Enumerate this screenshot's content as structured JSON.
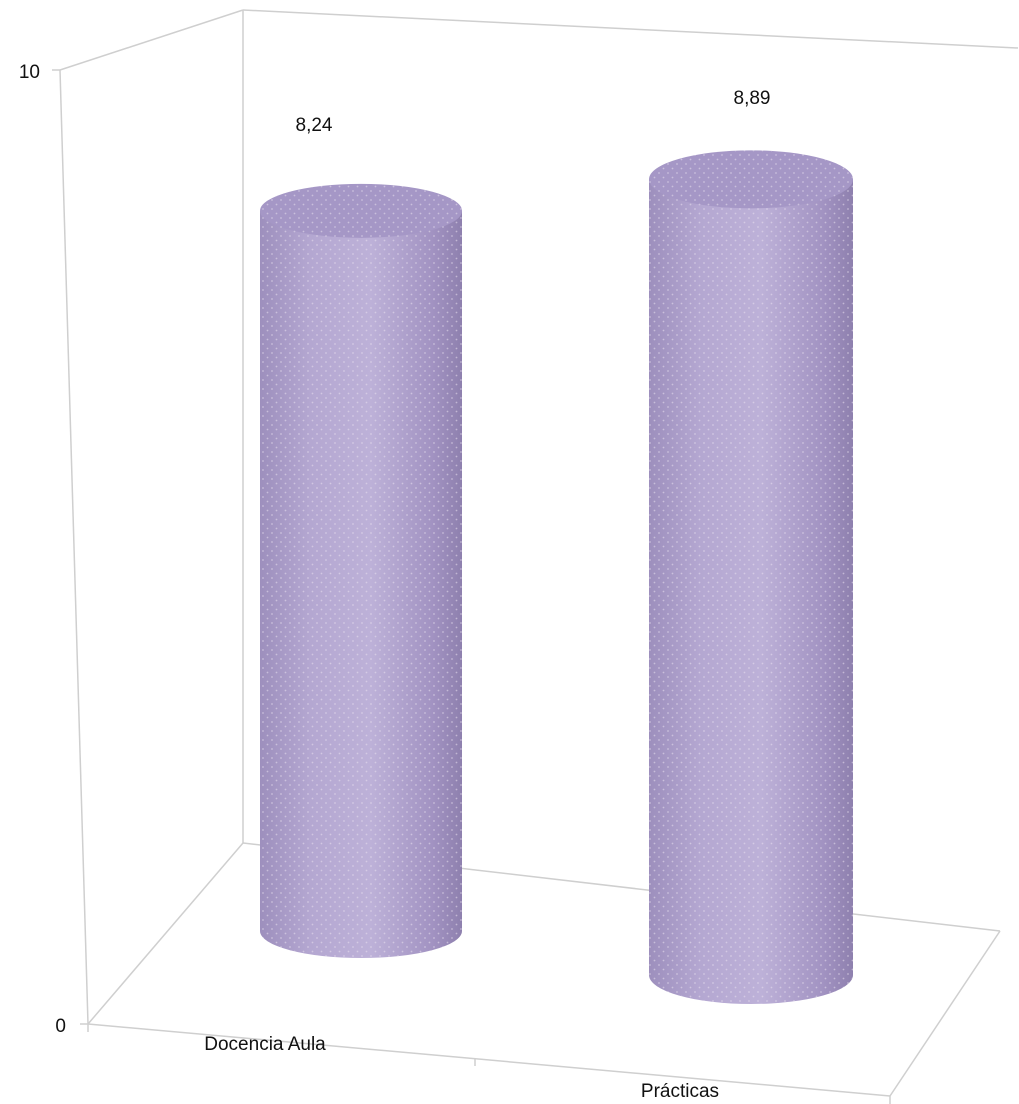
{
  "chart_data": {
    "type": "bar",
    "style": "3d-cylinder",
    "categories": [
      "Docencia Aula",
      "Prácticas"
    ],
    "values": [
      8.24,
      8.89
    ],
    "data_labels": [
      "8,24",
      "8,89"
    ],
    "y_ticks": [
      "0",
      "10"
    ],
    "ylim": [
      0,
      10
    ],
    "grid": false,
    "legend": "none",
    "bar_color": "#b3a6d0"
  }
}
